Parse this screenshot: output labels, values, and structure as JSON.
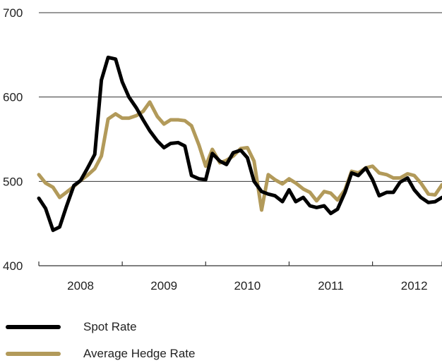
{
  "chart_data": {
    "type": "line",
    "title": "",
    "xlabel": "",
    "ylabel": "",
    "ylim": [
      400,
      700
    ],
    "yticks": [
      400,
      500,
      600,
      700
    ],
    "x_start": 2007.5,
    "x_end": 2012.333,
    "x_tick_marks": [
      2007.5,
      2008.5,
      2009.5,
      2010.5,
      2011.5,
      2012.333
    ],
    "x_labels": [
      {
        "label": "2008",
        "at": 2008.0
      },
      {
        "label": "2009",
        "at": 2009.0
      },
      {
        "label": "2010",
        "at": 2010.0
      },
      {
        "label": "2011",
        "at": 2011.0
      },
      {
        "label": "2012",
        "at": 2012.0
      }
    ],
    "grid": true,
    "legend_position": "bottom-left",
    "series": [
      {
        "name": "Spot Rate",
        "color": "#000000",
        "points": [
          [
            2007.5,
            480
          ],
          [
            2007.58,
            468
          ],
          [
            2007.67,
            442
          ],
          [
            2007.75,
            446
          ],
          [
            2007.83,
            470
          ],
          [
            2007.92,
            495
          ],
          [
            2008.0,
            501
          ],
          [
            2008.08,
            515
          ],
          [
            2008.17,
            532
          ],
          [
            2008.25,
            620
          ],
          [
            2008.33,
            647
          ],
          [
            2008.42,
            645
          ],
          [
            2008.5,
            618
          ],
          [
            2008.58,
            600
          ],
          [
            2008.67,
            587
          ],
          [
            2008.75,
            573
          ],
          [
            2008.83,
            560
          ],
          [
            2008.92,
            548
          ],
          [
            2009.0,
            540
          ],
          [
            2009.08,
            545
          ],
          [
            2009.17,
            546
          ],
          [
            2009.25,
            542
          ],
          [
            2009.33,
            507
          ],
          [
            2009.42,
            503
          ],
          [
            2009.5,
            502
          ],
          [
            2009.58,
            533
          ],
          [
            2009.67,
            524
          ],
          [
            2009.75,
            520
          ],
          [
            2009.83,
            534
          ],
          [
            2009.92,
            537
          ],
          [
            2010.0,
            528
          ],
          [
            2010.08,
            500
          ],
          [
            2010.17,
            488
          ],
          [
            2010.25,
            485
          ],
          [
            2010.33,
            483
          ],
          [
            2010.42,
            476
          ],
          [
            2010.5,
            490
          ],
          [
            2010.58,
            476
          ],
          [
            2010.67,
            481
          ],
          [
            2010.75,
            471
          ],
          [
            2010.83,
            469
          ],
          [
            2010.92,
            471
          ],
          [
            2011.0,
            462
          ],
          [
            2011.08,
            467
          ],
          [
            2011.17,
            487
          ],
          [
            2011.25,
            510
          ],
          [
            2011.33,
            507
          ],
          [
            2011.42,
            516
          ],
          [
            2011.5,
            502
          ],
          [
            2011.58,
            483
          ],
          [
            2011.67,
            487
          ],
          [
            2011.75,
            487
          ],
          [
            2011.83,
            499
          ],
          [
            2011.92,
            504
          ],
          [
            2012.0,
            490
          ],
          [
            2012.08,
            481
          ],
          [
            2012.17,
            475
          ],
          [
            2012.25,
            476
          ],
          [
            2012.333,
            481
          ]
        ]
      },
      {
        "name": "Average Hedge Rate",
        "color": "#b29a5a",
        "points": [
          [
            2007.5,
            508
          ],
          [
            2007.58,
            498
          ],
          [
            2007.67,
            493
          ],
          [
            2007.75,
            481
          ],
          [
            2007.83,
            487
          ],
          [
            2007.92,
            494
          ],
          [
            2008.0,
            501
          ],
          [
            2008.08,
            507
          ],
          [
            2008.17,
            515
          ],
          [
            2008.25,
            530
          ],
          [
            2008.33,
            574
          ],
          [
            2008.42,
            580
          ],
          [
            2008.5,
            575
          ],
          [
            2008.58,
            575
          ],
          [
            2008.67,
            578
          ],
          [
            2008.75,
            583
          ],
          [
            2008.83,
            594
          ],
          [
            2008.92,
            577
          ],
          [
            2009.0,
            568
          ],
          [
            2009.08,
            573
          ],
          [
            2009.17,
            573
          ],
          [
            2009.25,
            572
          ],
          [
            2009.33,
            566
          ],
          [
            2009.42,
            543
          ],
          [
            2009.5,
            518
          ],
          [
            2009.58,
            538
          ],
          [
            2009.67,
            522
          ],
          [
            2009.75,
            525
          ],
          [
            2009.83,
            530
          ],
          [
            2009.92,
            539
          ],
          [
            2010.0,
            540
          ],
          [
            2010.08,
            524
          ],
          [
            2010.17,
            466
          ],
          [
            2010.25,
            508
          ],
          [
            2010.33,
            502
          ],
          [
            2010.42,
            497
          ],
          [
            2010.5,
            503
          ],
          [
            2010.58,
            498
          ],
          [
            2010.67,
            491
          ],
          [
            2010.75,
            487
          ],
          [
            2010.83,
            477
          ],
          [
            2010.92,
            488
          ],
          [
            2011.0,
            486
          ],
          [
            2011.08,
            478
          ],
          [
            2011.17,
            490
          ],
          [
            2011.25,
            512
          ],
          [
            2011.33,
            510
          ],
          [
            2011.42,
            516
          ],
          [
            2011.5,
            518
          ],
          [
            2011.58,
            510
          ],
          [
            2011.67,
            508
          ],
          [
            2011.75,
            504
          ],
          [
            2011.83,
            504
          ],
          [
            2011.92,
            509
          ],
          [
            2012.0,
            507
          ],
          [
            2012.08,
            498
          ],
          [
            2012.17,
            485
          ],
          [
            2012.25,
            484
          ],
          [
            2012.333,
            496
          ]
        ]
      }
    ]
  }
}
